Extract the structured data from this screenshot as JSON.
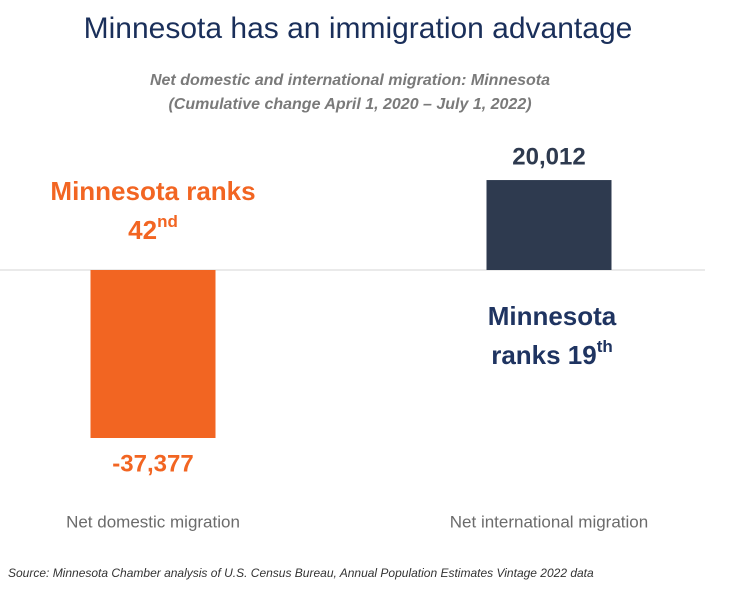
{
  "chart_data": {
    "type": "bar",
    "title": "Minnesota has an immigration advantage",
    "subtitle": [
      "Net domestic and international migration: Minnesota",
      "(Cumulative change April 1, 2020 – July 1, 2022)"
    ],
    "categories": [
      "Net domestic migration",
      "Net international migration"
    ],
    "values": [
      -37377,
      20012
    ],
    "value_labels": [
      "-37,377",
      "20,012"
    ],
    "colors": [
      "#f26522",
      "#2e3a4f"
    ],
    "annotations": [
      {
        "line1": "Minnesota ranks",
        "line2": "42",
        "superscript": "nd",
        "color": "#f26522"
      },
      {
        "line1": "Minnesota",
        "line2": "ranks 19",
        "superscript": "th",
        "color": "#1f3461"
      }
    ],
    "source": "Source: Minnesota Chamber analysis of U.S. Census Bureau, Annual Population Estimates Vintage 2022 data"
  }
}
